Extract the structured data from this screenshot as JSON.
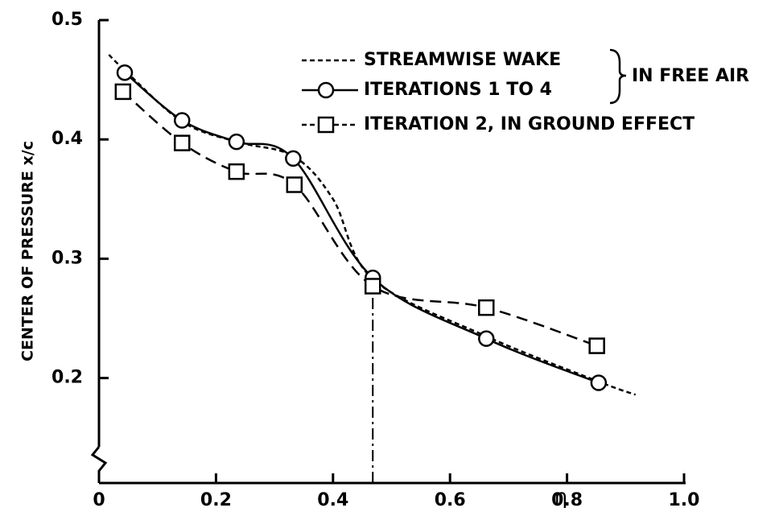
{
  "chart_data": {
    "type": "line",
    "y_label": "CENTER OF PRESSURE x/c",
    "x_label": "η",
    "annotation": "IN FREE AIR",
    "xlim": [
      0,
      1
    ],
    "ylim": [
      0.112,
      0.5
    ],
    "xticks": [
      0,
      0.2,
      0.4,
      0.6,
      0.8,
      {
        "value": 1,
        "label": "1.0"
      }
    ],
    "yticks": [
      0.2,
      0.3,
      0.4,
      0.5
    ],
    "vertical_line_x": 0.468,
    "series": [
      {
        "name": "STREAMWISE WAKE",
        "color": "#000000",
        "dash": "6 4",
        "marker": "none",
        "x": [
          0.017,
          0.044,
          0.142,
          0.235,
          0.332,
          0.4,
          0.468,
          0.662,
          0.854,
          0.917
        ],
        "values": [
          0.471,
          0.458,
          0.415,
          0.398,
          0.386,
          0.35,
          0.283,
          0.235,
          0.197,
          0.186
        ]
      },
      {
        "name": "ITERATIONS 1 TO 4",
        "color": "#000000",
        "dash": "none",
        "marker": "circle",
        "x": [
          0.044,
          0.142,
          0.235,
          0.332,
          0.468,
          0.662,
          0.854
        ],
        "values": [
          0.456,
          0.416,
          0.398,
          0.384,
          0.284,
          0.233,
          0.196
        ]
      },
      {
        "name": "ITERATION 2, IN GROUND EFFECT",
        "color": "#000000",
        "dash": "14 8",
        "marker": "square",
        "x": [
          0.041,
          0.142,
          0.235,
          0.334,
          0.468,
          0.662,
          0.851
        ],
        "values": [
          0.44,
          0.397,
          0.373,
          0.362,
          0.277,
          0.259,
          0.227
        ]
      }
    ]
  }
}
